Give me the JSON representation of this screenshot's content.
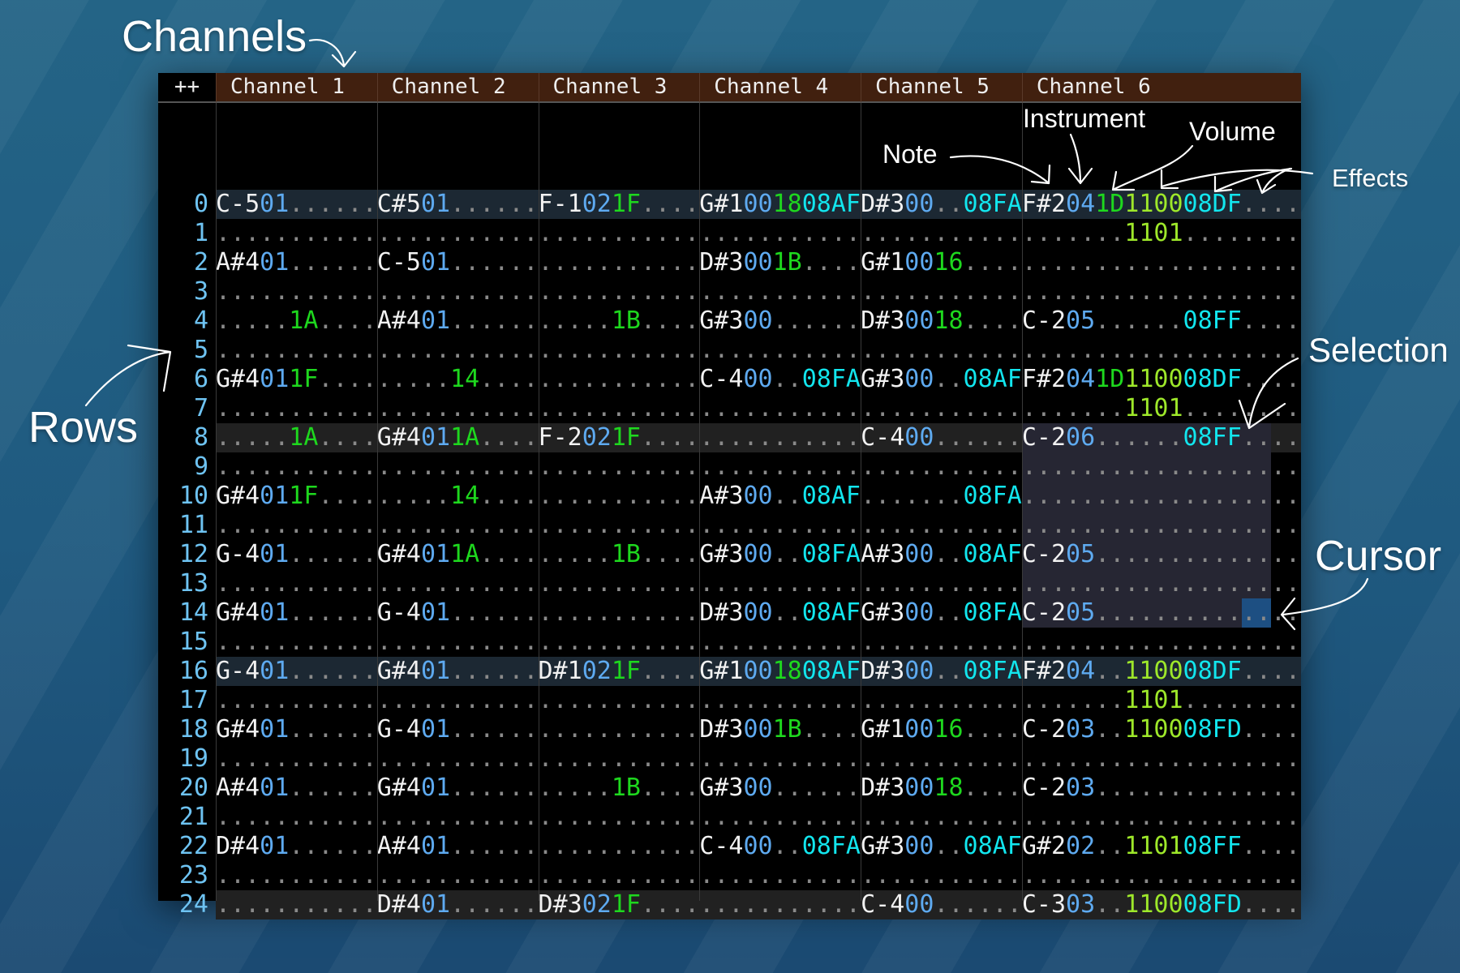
{
  "header": {
    "corner_label": "++",
    "channels": [
      "Channel 1",
      "Channel 2",
      "Channel 3",
      "Channel 4",
      "Channel 5",
      "Channel 6"
    ]
  },
  "annotations": {
    "channels": "Channels",
    "rows": "Rows",
    "note": "Note",
    "instrument": "Instrument",
    "volume": "Volume",
    "effects": "Effects",
    "selection": "Selection",
    "cursor": "Cursor"
  },
  "colors": {
    "note": "#f2f2f2",
    "instrument": "#5eaaf0",
    "volume": "#1ed81e",
    "effect_11": "#9ee82a",
    "effect_08": "#12e6ee",
    "dots": "#8a8a8a",
    "row_number": "#6ec3f2",
    "header_bg": "#41200f"
  },
  "selection": {
    "channel": 6,
    "start_row": 8,
    "end_row": 14,
    "start_col": 0,
    "end_col": 16
  },
  "cursor": {
    "channel": 6,
    "row": 14,
    "col": 15,
    "chars": 2
  },
  "rows": [
    {
      "num": "0",
      "cells": [
        "C-501......",
        "C#501......",
        "F-1021F....",
        "G#1001808AF",
        "D#300..08FA",
        "F#2041D110008DF...."
      ]
    },
    {
      "num": "1",
      "cells": [
        "...........",
        "...........",
        "...........",
        "...........",
        "...........",
        ".......1101........"
      ]
    },
    {
      "num": "2",
      "cells": [
        "A#401......",
        "C-501......",
        "...........",
        "D#3001B....",
        "G#10016....",
        "..................."
      ]
    },
    {
      "num": "3",
      "cells": [
        "...........",
        "...........",
        "...........",
        "...........",
        "...........",
        "..................."
      ]
    },
    {
      "num": "4",
      "cells": [
        ".....1A....",
        "A#401......",
        ".....1B....",
        "G#300......",
        "D#30018....",
        "C-205......08FF...."
      ]
    },
    {
      "num": "5",
      "cells": [
        "...........",
        "...........",
        "...........",
        "...........",
        "...........",
        "..................."
      ]
    },
    {
      "num": "6",
      "cells": [
        "G#4011F....",
        ".....14....",
        "...........",
        "C-400..08FA",
        "G#300..08AF",
        "F#2041D110008DF...."
      ]
    },
    {
      "num": "7",
      "cells": [
        "...........",
        "...........",
        "...........",
        "...........",
        "...........",
        ".......1101........"
      ]
    },
    {
      "num": "8",
      "cells": [
        ".....1A....",
        "G#4011A....",
        "F-2021F....",
        "...........",
        "C-400......",
        "C-206......08FF...."
      ]
    },
    {
      "num": "9",
      "cells": [
        "...........",
        "...........",
        "...........",
        "...........",
        "...........",
        "..................."
      ]
    },
    {
      "num": "10",
      "cells": [
        "G#4011F....",
        ".....14....",
        "...........",
        "A#300..08AF",
        ".......08FA",
        "..................."
      ]
    },
    {
      "num": "11",
      "cells": [
        "...........",
        "...........",
        "...........",
        "...........",
        "...........",
        "..................."
      ]
    },
    {
      "num": "12",
      "cells": [
        "G-401......",
        "G#4011A....",
        ".....1B....",
        "G#300..08FA",
        "A#300..08AF",
        "C-205.............."
      ]
    },
    {
      "num": "13",
      "cells": [
        "...........",
        "...........",
        "...........",
        "...........",
        "...........",
        "..................."
      ]
    },
    {
      "num": "14",
      "cells": [
        "G#401......",
        "G-401......",
        "...........",
        "D#300..08AF",
        "G#300..08FA",
        "C-205.............."
      ]
    },
    {
      "num": "15",
      "cells": [
        "...........",
        "...........",
        "...........",
        "...........",
        "...........",
        "..................."
      ]
    },
    {
      "num": "16",
      "cells": [
        "G-401......",
        "G#401......",
        "D#1021F....",
        "G#1001808AF",
        "D#300..08FA",
        "F#204..110008DF...."
      ]
    },
    {
      "num": "17",
      "cells": [
        "...........",
        "...........",
        "...........",
        "...........",
        "...........",
        ".......1101........"
      ]
    },
    {
      "num": "18",
      "cells": [
        "G#401......",
        "G-401......",
        "...........",
        "D#3001B....",
        "G#10016....",
        "C-203..110008FD...."
      ]
    },
    {
      "num": "19",
      "cells": [
        "...........",
        "...........",
        "...........",
        "...........",
        "...........",
        "..................."
      ]
    },
    {
      "num": "20",
      "cells": [
        "A#401......",
        "G#401......",
        ".....1B....",
        "G#300......",
        "D#30018....",
        "C-203.............."
      ]
    },
    {
      "num": "21",
      "cells": [
        "...........",
        "...........",
        "...........",
        "...........",
        "...........",
        "..................."
      ]
    },
    {
      "num": "22",
      "cells": [
        "D#401......",
        "A#401......",
        "...........",
        "C-400..08FA",
        "G#300..08AF",
        "G#202..110108FF...."
      ]
    },
    {
      "num": "23",
      "cells": [
        "...........",
        "...........",
        "...........",
        "...........",
        "...........",
        "..................."
      ]
    },
    {
      "num": "24",
      "cells": [
        "...........",
        "D#401......",
        "D#3021F....",
        "...........",
        "C-400......",
        "C-303..110008FD...."
      ]
    }
  ]
}
